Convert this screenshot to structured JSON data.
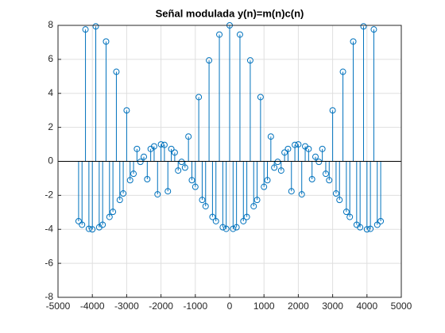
{
  "chart_data": {
    "type": "stem",
    "title": "Señal modulada y(n)=m(n)c(n)",
    "x": [
      -4400,
      -4300,
      -4200,
      -4100,
      -4000,
      -3900,
      -3800,
      -3700,
      -3600,
      -3500,
      -3400,
      -3300,
      -3200,
      -3100,
      -3000,
      -2900,
      -2800,
      -2700,
      -2600,
      -2500,
      -2400,
      -2300,
      -2200,
      -2100,
      -2000,
      -1900,
      -1800,
      -1700,
      -1600,
      -1500,
      -1400,
      -1300,
      -1200,
      -1100,
      -1000,
      -900,
      -800,
      -700,
      -600,
      -500,
      -400,
      -300,
      -200,
      -100,
      0,
      100,
      200,
      300,
      400,
      500,
      600,
      700,
      800,
      900,
      1000,
      1100,
      1200,
      1300,
      1400,
      1500,
      1600,
      1700,
      1800,
      1900,
      2000,
      2100,
      2200,
      2300,
      2400,
      2500,
      2600,
      2700,
      2800,
      2900,
      3000,
      3100,
      3200,
      3300,
      3400,
      3500,
      3600,
      3700,
      3800,
      3900,
      4000,
      4100,
      4200,
      4300,
      4400
    ],
    "values": [
      -3.52,
      -3.73,
      7.76,
      -3.97,
      -4,
      7.94,
      -3.88,
      -3.73,
      7.05,
      -3.27,
      -2.97,
      5.27,
      -2.27,
      -1.89,
      3,
      -1.11,
      -0.73,
      0.73,
      -0.03,
      0.27,
      -1.05,
      0.73,
      0.88,
      -1.94,
      1,
      0.97,
      -1.76,
      0.73,
      0.52,
      -0.54,
      -0.03,
      -0.37,
      1.46,
      -1.11,
      -1.5,
      3.78,
      -2.27,
      -2.64,
      5.94,
      -3.27,
      -3.52,
      7.46,
      -3.88,
      -3.97,
      8,
      -3.97,
      -3.88,
      7.46,
      -3.52,
      -3.27,
      5.94,
      -2.64,
      -2.27,
      3.78,
      -1.5,
      -1.11,
      1.46,
      -0.37,
      -0.03,
      -0.54,
      0.52,
      0.73,
      -1.76,
      0.97,
      1,
      -1.94,
      0.88,
      0.73,
      -1.05,
      0.27,
      -0.03,
      0.73,
      -0.73,
      -1.11,
      3,
      -1.89,
      -2.27,
      5.27,
      -2.97,
      -3.27,
      7.05,
      -3.73,
      -3.88,
      7.94,
      -4,
      -3.97,
      7.76,
      -3.73,
      -3.52
    ],
    "color": "#0072bd",
    "xlim": [
      -5000,
      5000
    ],
    "xticks": [
      -5000,
      -4000,
      -3000,
      -2000,
      -1000,
      0,
      1000,
      2000,
      3000,
      4000,
      5000
    ],
    "ylim": [
      -8,
      8
    ],
    "yticks": [
      -8,
      -6,
      -4,
      -2,
      0,
      2,
      4,
      6,
      8
    ],
    "grid": true
  }
}
